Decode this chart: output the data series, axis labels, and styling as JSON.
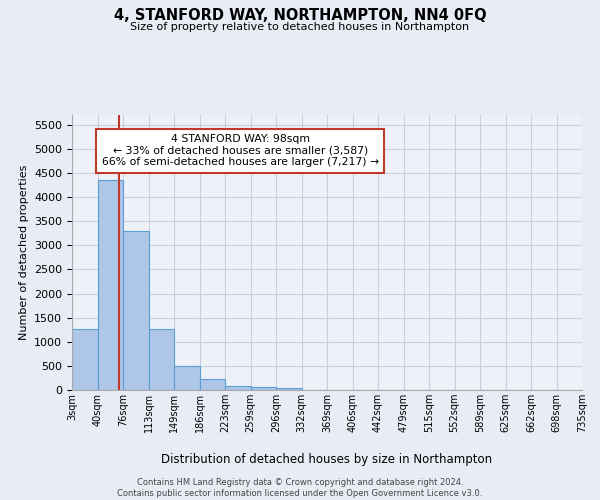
{
  "title": "4, STANFORD WAY, NORTHAMPTON, NN4 0FQ",
  "subtitle": "Size of property relative to detached houses in Northampton",
  "xlabel": "Distribution of detached houses by size in Northampton",
  "ylabel": "Number of detached properties",
  "bar_values": [
    1270,
    4350,
    3300,
    1270,
    490,
    220,
    90,
    55,
    50,
    0,
    0,
    0,
    0,
    0,
    0,
    0,
    0,
    0,
    0,
    0
  ],
  "bin_labels": [
    "3sqm",
    "40sqm",
    "76sqm",
    "113sqm",
    "149sqm",
    "186sqm",
    "223sqm",
    "259sqm",
    "296sqm",
    "332sqm",
    "369sqm",
    "406sqm",
    "442sqm",
    "479sqm",
    "515sqm",
    "552sqm",
    "589sqm",
    "625sqm",
    "662sqm",
    "698sqm",
    "735sqm"
  ],
  "bar_color": "#aec6e8",
  "bar_edge_color": "#5a9fd4",
  "vline_x": 1.85,
  "vline_color": "#c0392b",
  "ylim": [
    0,
    5700
  ],
  "yticks": [
    0,
    500,
    1000,
    1500,
    2000,
    2500,
    3000,
    3500,
    4000,
    4500,
    5000,
    5500
  ],
  "annotation_title": "4 STANFORD WAY: 98sqm",
  "annotation_line1": "← 33% of detached houses are smaller (3,587)",
  "annotation_line2": "66% of semi-detached houses are larger (7,217) →",
  "annotation_box_color": "#c0392b",
  "footer_line1": "Contains HM Land Registry data © Crown copyright and database right 2024.",
  "footer_line2": "Contains public sector information licensed under the Open Government Licence v3.0.",
  "bg_color": "#e8edf5",
  "plot_bg_color": "#eef2f8",
  "grid_color": "#c8d0e0"
}
